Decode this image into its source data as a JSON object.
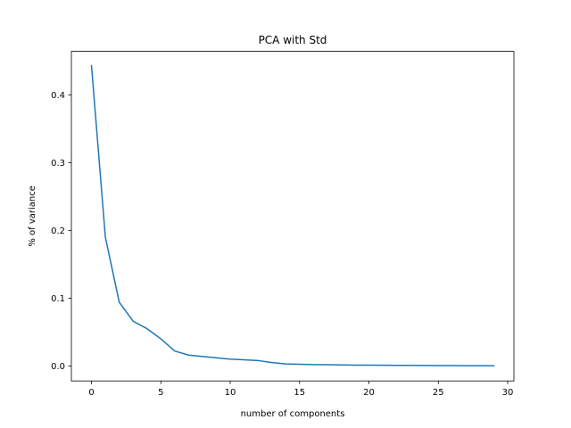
{
  "chart_data": {
    "type": "line",
    "title": "PCA with Std",
    "xlabel": "number of components",
    "ylabel": "% of variance",
    "xlim": [
      -1.45,
      30.45
    ],
    "ylim": [
      -0.0221,
      0.4641
    ],
    "xticks": [
      0,
      5,
      10,
      15,
      20,
      25,
      30
    ],
    "yticks": [
      0.0,
      0.1,
      0.2,
      0.3,
      0.4
    ],
    "xtick_labels": [
      "0",
      "5",
      "10",
      "15",
      "20",
      "25",
      "30"
    ],
    "ytick_labels": [
      "0.0",
      "0.1",
      "0.2",
      "0.3",
      "0.4"
    ],
    "grid": false,
    "line_color": "#1f77b4",
    "series": [
      {
        "x": [
          0,
          1,
          2,
          3,
          4,
          5,
          6,
          7,
          8,
          9,
          10,
          11,
          12,
          13,
          14,
          15,
          16,
          17,
          18,
          19,
          20,
          21,
          22,
          23,
          24,
          25,
          26,
          27,
          28,
          29
        ],
        "values": [
          0.443,
          0.19,
          0.094,
          0.066,
          0.055,
          0.04,
          0.022,
          0.016,
          0.014,
          0.012,
          0.01,
          0.009,
          0.008,
          0.005,
          0.003,
          0.0025,
          0.002,
          0.0018,
          0.0015,
          0.0012,
          0.0011,
          0.001,
          0.0009,
          0.0008,
          0.0007,
          0.0006,
          0.0005,
          0.0004,
          0.0003,
          0.0002
        ]
      }
    ]
  }
}
